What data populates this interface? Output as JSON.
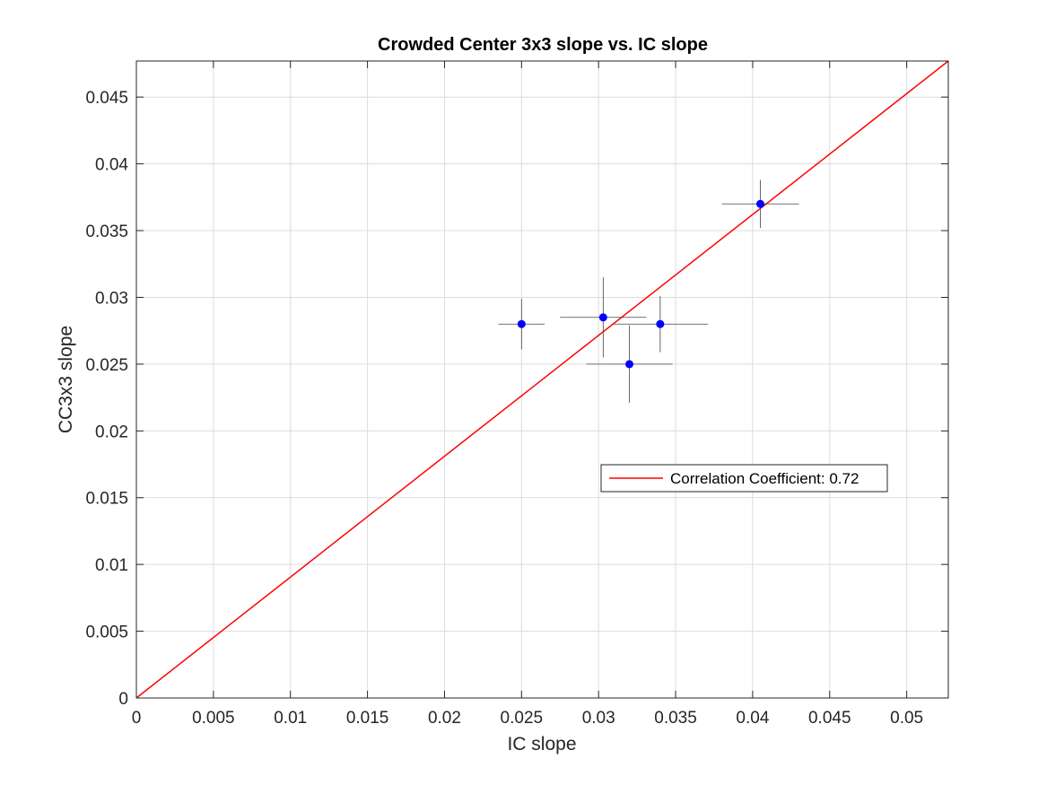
{
  "chart_data": {
    "type": "scatter",
    "title": "Crowded Center 3x3 slope vs. IC slope",
    "xlabel": "IC slope",
    "ylabel": "CC3x3 slope",
    "xlim": [
      0,
      0.0527
    ],
    "ylim": [
      0,
      0.0477
    ],
    "xticks": [
      0,
      0.005,
      0.01,
      0.015,
      0.02,
      0.025,
      0.03,
      0.035,
      0.04,
      0.045,
      0.05
    ],
    "xtick_labels": [
      "0",
      "0.005",
      "0.01",
      "0.015",
      "0.02",
      "0.025",
      "0.03",
      "0.035",
      "0.04",
      "0.045",
      "0.05"
    ],
    "yticks": [
      0,
      0.005,
      0.01,
      0.015,
      0.02,
      0.025,
      0.03,
      0.035,
      0.04,
      0.045
    ],
    "ytick_labels": [
      "0",
      "0.005",
      "0.01",
      "0.015",
      "0.02",
      "0.025",
      "0.03",
      "0.035",
      "0.04",
      "0.045"
    ],
    "grid": true,
    "points": [
      {
        "x": 0.025,
        "y": 0.028,
        "xerr": 0.0015,
        "yerr": 0.0019
      },
      {
        "x": 0.0303,
        "y": 0.0285,
        "xerr": 0.0028,
        "yerr": 0.003
      },
      {
        "x": 0.034,
        "y": 0.028,
        "xerr": 0.0031,
        "yerr": 0.0021
      },
      {
        "x": 0.032,
        "y": 0.025,
        "xerr": 0.0028,
        "yerr": 0.0029
      },
      {
        "x": 0.0405,
        "y": 0.037,
        "xerr": 0.0025,
        "yerr": 0.0018
      }
    ],
    "fit_line": {
      "x": [
        0,
        0.0527
      ],
      "y": [
        0,
        0.0477
      ]
    },
    "legend": {
      "entries": [
        "Correlation Coefficient: 0.72"
      ],
      "placement": "center-right"
    },
    "colors": {
      "points": "#0000ff",
      "fit_line": "#ff0000",
      "errorbars": "#444444",
      "grid": "#dcdcdc"
    }
  }
}
